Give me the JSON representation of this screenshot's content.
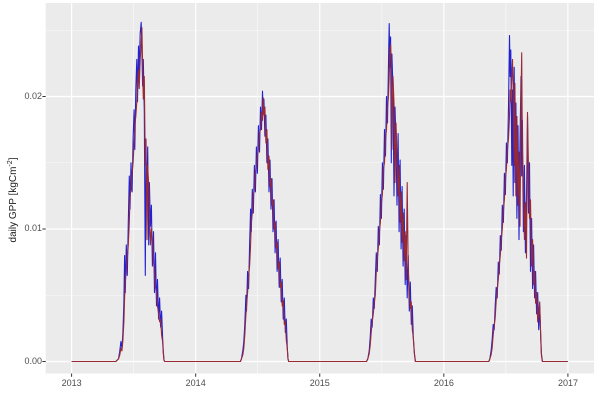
{
  "chart_data": {
    "type": "line",
    "title": "",
    "xlabel": "",
    "ylabel_pre": "daily GPP [kgCm",
    "ylabel_sup": "-2",
    "ylabel_post": "]",
    "x_ticks": [
      "2013",
      "2014",
      "2015",
      "2016",
      "2017"
    ],
    "y_ticks": [
      "0.00",
      "0.01",
      "0.02"
    ],
    "x_range_days": [
      0,
      1461
    ],
    "ylim": [
      -0.0009,
      0.0271
    ],
    "grid": "on",
    "legend": "none",
    "panel_bg": "#EBEBEB",
    "grid_color": "#FFFFFF",
    "tick_text_color": "#4d4d4d",
    "series": [
      {
        "name": "blue",
        "color": "#2222d2"
      },
      {
        "name": "red",
        "color": "#992933"
      }
    ],
    "points_format": [
      "day_since_2013_01_01",
      "blue_value",
      "red_value"
    ],
    "points": [
      [
        0,
        0,
        0
      ],
      [
        70,
        0,
        0
      ],
      [
        130,
        0,
        0
      ],
      [
        138,
        0.0002,
        0.0002
      ],
      [
        142,
        0.0008,
        0.0005
      ],
      [
        145,
        0.0015,
        0.001
      ],
      [
        148,
        0.001,
        0.0008
      ],
      [
        151,
        0.0022,
        0.0016
      ],
      [
        154,
        0.0045,
        0.003
      ],
      [
        156,
        0.008,
        0.0048
      ],
      [
        158,
        0.0052,
        0.006
      ],
      [
        161,
        0.0088,
        0.007
      ],
      [
        164,
        0.0065,
        0.0078
      ],
      [
        167,
        0.0105,
        0.0088
      ],
      [
        170,
        0.014,
        0.0105
      ],
      [
        172,
        0.0115,
        0.0125
      ],
      [
        175,
        0.015,
        0.013
      ],
      [
        178,
        0.0128,
        0.0142
      ],
      [
        181,
        0.0168,
        0.015
      ],
      [
        184,
        0.019,
        0.0165
      ],
      [
        186,
        0.016,
        0.0178
      ],
      [
        189,
        0.0205,
        0.0185
      ],
      [
        192,
        0.0228,
        0.0196
      ],
      [
        194,
        0.0196,
        0.021
      ],
      [
        197,
        0.0238,
        0.022
      ],
      [
        199,
        0.0218,
        0.0206
      ],
      [
        202,
        0.0248,
        0.0228
      ],
      [
        205,
        0.0256,
        0.024
      ],
      [
        207,
        0.0235,
        0.0252
      ],
      [
        209,
        0.0208,
        0.0224
      ],
      [
        211,
        0.0228,
        0.0198
      ],
      [
        214,
        0.0188,
        0.0215
      ],
      [
        217,
        0.0065,
        0.0148
      ],
      [
        219,
        0.0152,
        0.0168
      ],
      [
        222,
        0.0128,
        0.0092
      ],
      [
        224,
        0.0162,
        0.0148
      ],
      [
        227,
        0.0088,
        0.0132
      ],
      [
        229,
        0.0135,
        0.0112
      ],
      [
        232,
        0.0102,
        0.0088
      ],
      [
        235,
        0.0118,
        0.01
      ],
      [
        238,
        0.0072,
        0.0092
      ],
      [
        241,
        0.0098,
        0.0076
      ],
      [
        244,
        0.0052,
        0.0066
      ],
      [
        247,
        0.0082,
        0.0056
      ],
      [
        250,
        0.0042,
        0.0052
      ],
      [
        253,
        0.0062,
        0.0042
      ],
      [
        256,
        0.0032,
        0.0036
      ],
      [
        259,
        0.0048,
        0.003
      ],
      [
        262,
        0.0026,
        0.0032
      ],
      [
        265,
        0.0038,
        0.002
      ],
      [
        268,
        0.0018,
        0.0015
      ],
      [
        270,
        0.0008,
        0.0006
      ],
      [
        272,
        0.0001,
        0.0001
      ],
      [
        274,
        0,
        0
      ],
      [
        350,
        0,
        0
      ],
      [
        450,
        0,
        0
      ],
      [
        497,
        0,
        0
      ],
      [
        500,
        0.0002,
        0.0002
      ],
      [
        504,
        0.0008,
        0.0005
      ],
      [
        507,
        0.0015,
        0.001
      ],
      [
        510,
        0.0028,
        0.002
      ],
      [
        513,
        0.005,
        0.0035
      ],
      [
        515,
        0.0038,
        0.0042
      ],
      [
        518,
        0.0068,
        0.0052
      ],
      [
        521,
        0.0055,
        0.0065
      ],
      [
        524,
        0.0088,
        0.0072
      ],
      [
        527,
        0.0115,
        0.0088
      ],
      [
        529,
        0.0098,
        0.0105
      ],
      [
        532,
        0.013,
        0.0112
      ],
      [
        535,
        0.0112,
        0.0125
      ],
      [
        538,
        0.0148,
        0.013
      ],
      [
        541,
        0.0128,
        0.0142
      ],
      [
        544,
        0.0162,
        0.0148
      ],
      [
        547,
        0.0142,
        0.0155
      ],
      [
        550,
        0.0178,
        0.016
      ],
      [
        553,
        0.0158,
        0.0172
      ],
      [
        556,
        0.0192,
        0.0175
      ],
      [
        559,
        0.0175,
        0.0188
      ],
      [
        562,
        0.0204,
        0.0182
      ],
      [
        564,
        0.0188,
        0.0199
      ],
      [
        566,
        0.0198,
        0.0186
      ],
      [
        569,
        0.017,
        0.0192
      ],
      [
        572,
        0.0186,
        0.0165
      ],
      [
        575,
        0.015,
        0.0175
      ],
      [
        578,
        0.0168,
        0.0145
      ],
      [
        581,
        0.0128,
        0.0155
      ],
      [
        584,
        0.0152,
        0.0132
      ],
      [
        587,
        0.0115,
        0.0138
      ],
      [
        590,
        0.0138,
        0.0118
      ],
      [
        593,
        0.0098,
        0.0122
      ],
      [
        596,
        0.0122,
        0.01
      ],
      [
        599,
        0.0082,
        0.0105
      ],
      [
        602,
        0.0106,
        0.0086
      ],
      [
        605,
        0.0068,
        0.009
      ],
      [
        608,
        0.0092,
        0.007
      ],
      [
        611,
        0.0056,
        0.0075
      ],
      [
        614,
        0.0078,
        0.0056
      ],
      [
        617,
        0.0045,
        0.006
      ],
      [
        620,
        0.0062,
        0.0042
      ],
      [
        623,
        0.0032,
        0.0046
      ],
      [
        626,
        0.0048,
        0.0028
      ],
      [
        629,
        0.0022,
        0.003
      ],
      [
        632,
        0.0032,
        0.0016
      ],
      [
        635,
        0.001,
        0.001
      ],
      [
        637,
        0.0002,
        0.0002
      ],
      [
        639,
        0,
        0
      ],
      [
        700,
        0,
        0
      ],
      [
        800,
        0,
        0
      ],
      [
        868,
        0,
        0
      ],
      [
        872,
        0.0002,
        0.0002
      ],
      [
        876,
        0.0008,
        0.0006
      ],
      [
        879,
        0.0018,
        0.0012
      ],
      [
        882,
        0.0032,
        0.0022
      ],
      [
        885,
        0.0026,
        0.003
      ],
      [
        888,
        0.0048,
        0.0036
      ],
      [
        891,
        0.004,
        0.0045
      ],
      [
        894,
        0.0062,
        0.005
      ],
      [
        897,
        0.0082,
        0.0068
      ],
      [
        900,
        0.0068,
        0.0078
      ],
      [
        903,
        0.0102,
        0.0085
      ],
      [
        906,
        0.0088,
        0.0098
      ],
      [
        909,
        0.0126,
        0.0105
      ],
      [
        912,
        0.0108,
        0.012
      ],
      [
        915,
        0.015,
        0.0126
      ],
      [
        918,
        0.013,
        0.0145
      ],
      [
        921,
        0.0175,
        0.015
      ],
      [
        924,
        0.0155,
        0.0168
      ],
      [
        927,
        0.02,
        0.0175
      ],
      [
        930,
        0.018,
        0.0192
      ],
      [
        933,
        0.0225,
        0.02
      ],
      [
        935,
        0.0255,
        0.0215
      ],
      [
        937,
        0.0222,
        0.0235
      ],
      [
        939,
        0.0245,
        0.0239
      ],
      [
        941,
        0.015,
        0.0225
      ],
      [
        943,
        0.0232,
        0.016
      ],
      [
        946,
        0.0205,
        0.0215
      ],
      [
        949,
        0.0125,
        0.0195
      ],
      [
        952,
        0.0192,
        0.0135
      ],
      [
        955,
        0.0165,
        0.018
      ],
      [
        958,
        0.0118,
        0.0155
      ],
      [
        961,
        0.0172,
        0.0125
      ],
      [
        964,
        0.0098,
        0.0148
      ],
      [
        967,
        0.0152,
        0.0105
      ],
      [
        970,
        0.0085,
        0.0128
      ],
      [
        973,
        0.0132,
        0.009
      ],
      [
        976,
        0.0072,
        0.0112
      ],
      [
        979,
        0.0115,
        0.0076
      ],
      [
        982,
        0.0058,
        0.0098
      ],
      [
        985,
        0.0095,
        0.0062
      ],
      [
        988,
        0.0048,
        0.0135
      ],
      [
        991,
        0.008,
        0.007
      ],
      [
        994,
        0.0038,
        0.0052
      ],
      [
        997,
        0.006,
        0.004
      ],
      [
        1000,
        0.0028,
        0.0045
      ],
      [
        1003,
        0.0042,
        0.0024
      ],
      [
        1006,
        0.0018,
        0.0018
      ],
      [
        1009,
        0.0006,
        0.0006
      ],
      [
        1012,
        0,
        0
      ],
      [
        1060,
        0,
        0
      ],
      [
        1160,
        0,
        0
      ],
      [
        1228,
        0,
        0
      ],
      [
        1231,
        0.0002,
        0.0002
      ],
      [
        1235,
        0.0008,
        0.0005
      ],
      [
        1238,
        0.0016,
        0.001
      ],
      [
        1241,
        0.0028,
        0.002
      ],
      [
        1244,
        0.0024,
        0.0027
      ],
      [
        1247,
        0.0042,
        0.0033
      ],
      [
        1250,
        0.0056,
        0.0046
      ],
      [
        1253,
        0.0048,
        0.0054
      ],
      [
        1256,
        0.0075,
        0.0062
      ],
      [
        1259,
        0.0066,
        0.0073
      ],
      [
        1262,
        0.0095,
        0.008
      ],
      [
        1265,
        0.0084,
        0.0092
      ],
      [
        1268,
        0.0118,
        0.01
      ],
      [
        1271,
        0.0105,
        0.0114
      ],
      [
        1274,
        0.0142,
        0.0122
      ],
      [
        1277,
        0.0126,
        0.0138
      ],
      [
        1280,
        0.0165,
        0.0145
      ],
      [
        1283,
        0.015,
        0.016
      ],
      [
        1286,
        0.0192,
        0.0168
      ],
      [
        1289,
        0.0246,
        0.0185
      ],
      [
        1291,
        0.0215,
        0.0205
      ],
      [
        1293,
        0.0235,
        0.0196
      ],
      [
        1296,
        0.0148,
        0.0215
      ],
      [
        1298,
        0.0205,
        0.0228
      ],
      [
        1300,
        0.0125,
        0.0205
      ],
      [
        1303,
        0.0222,
        0.0148
      ],
      [
        1305,
        0.0135,
        0.021
      ],
      [
        1308,
        0.0195,
        0.0125
      ],
      [
        1311,
        0.0108,
        0.0185
      ],
      [
        1314,
        0.0178,
        0.0118
      ],
      [
        1317,
        0.0092,
        0.0158
      ],
      [
        1320,
        0.0165,
        0.0102
      ],
      [
        1323,
        0.0215,
        0.0198
      ],
      [
        1325,
        0.014,
        0.0233
      ],
      [
        1327,
        0.0182,
        0.0158
      ],
      [
        1330,
        0.0098,
        0.0135
      ],
      [
        1333,
        0.0148,
        0.0092
      ],
      [
        1336,
        0.0082,
        0.012
      ],
      [
        1339,
        0.0125,
        0.0078
      ],
      [
        1342,
        0.0185,
        0.0188
      ],
      [
        1345,
        0.0112,
        0.0145
      ],
      [
        1348,
        0.015,
        0.0108
      ],
      [
        1351,
        0.0068,
        0.0122
      ],
      [
        1354,
        0.0108,
        0.0072
      ],
      [
        1357,
        0.0055,
        0.0092
      ],
      [
        1360,
        0.0088,
        0.0058
      ],
      [
        1363,
        0.0048,
        0.0068
      ],
      [
        1366,
        0.0068,
        0.0044
      ],
      [
        1369,
        0.0036,
        0.0052
      ],
      [
        1372,
        0.0052,
        0.003
      ],
      [
        1375,
        0.0024,
        0.0036
      ],
      [
        1378,
        0.0042,
        0.0045
      ],
      [
        1381,
        0.002,
        0.0018
      ],
      [
        1383,
        0.0006,
        0.0005
      ],
      [
        1386,
        0,
        0
      ],
      [
        1420,
        0,
        0
      ],
      [
        1461,
        0,
        0
      ]
    ]
  }
}
